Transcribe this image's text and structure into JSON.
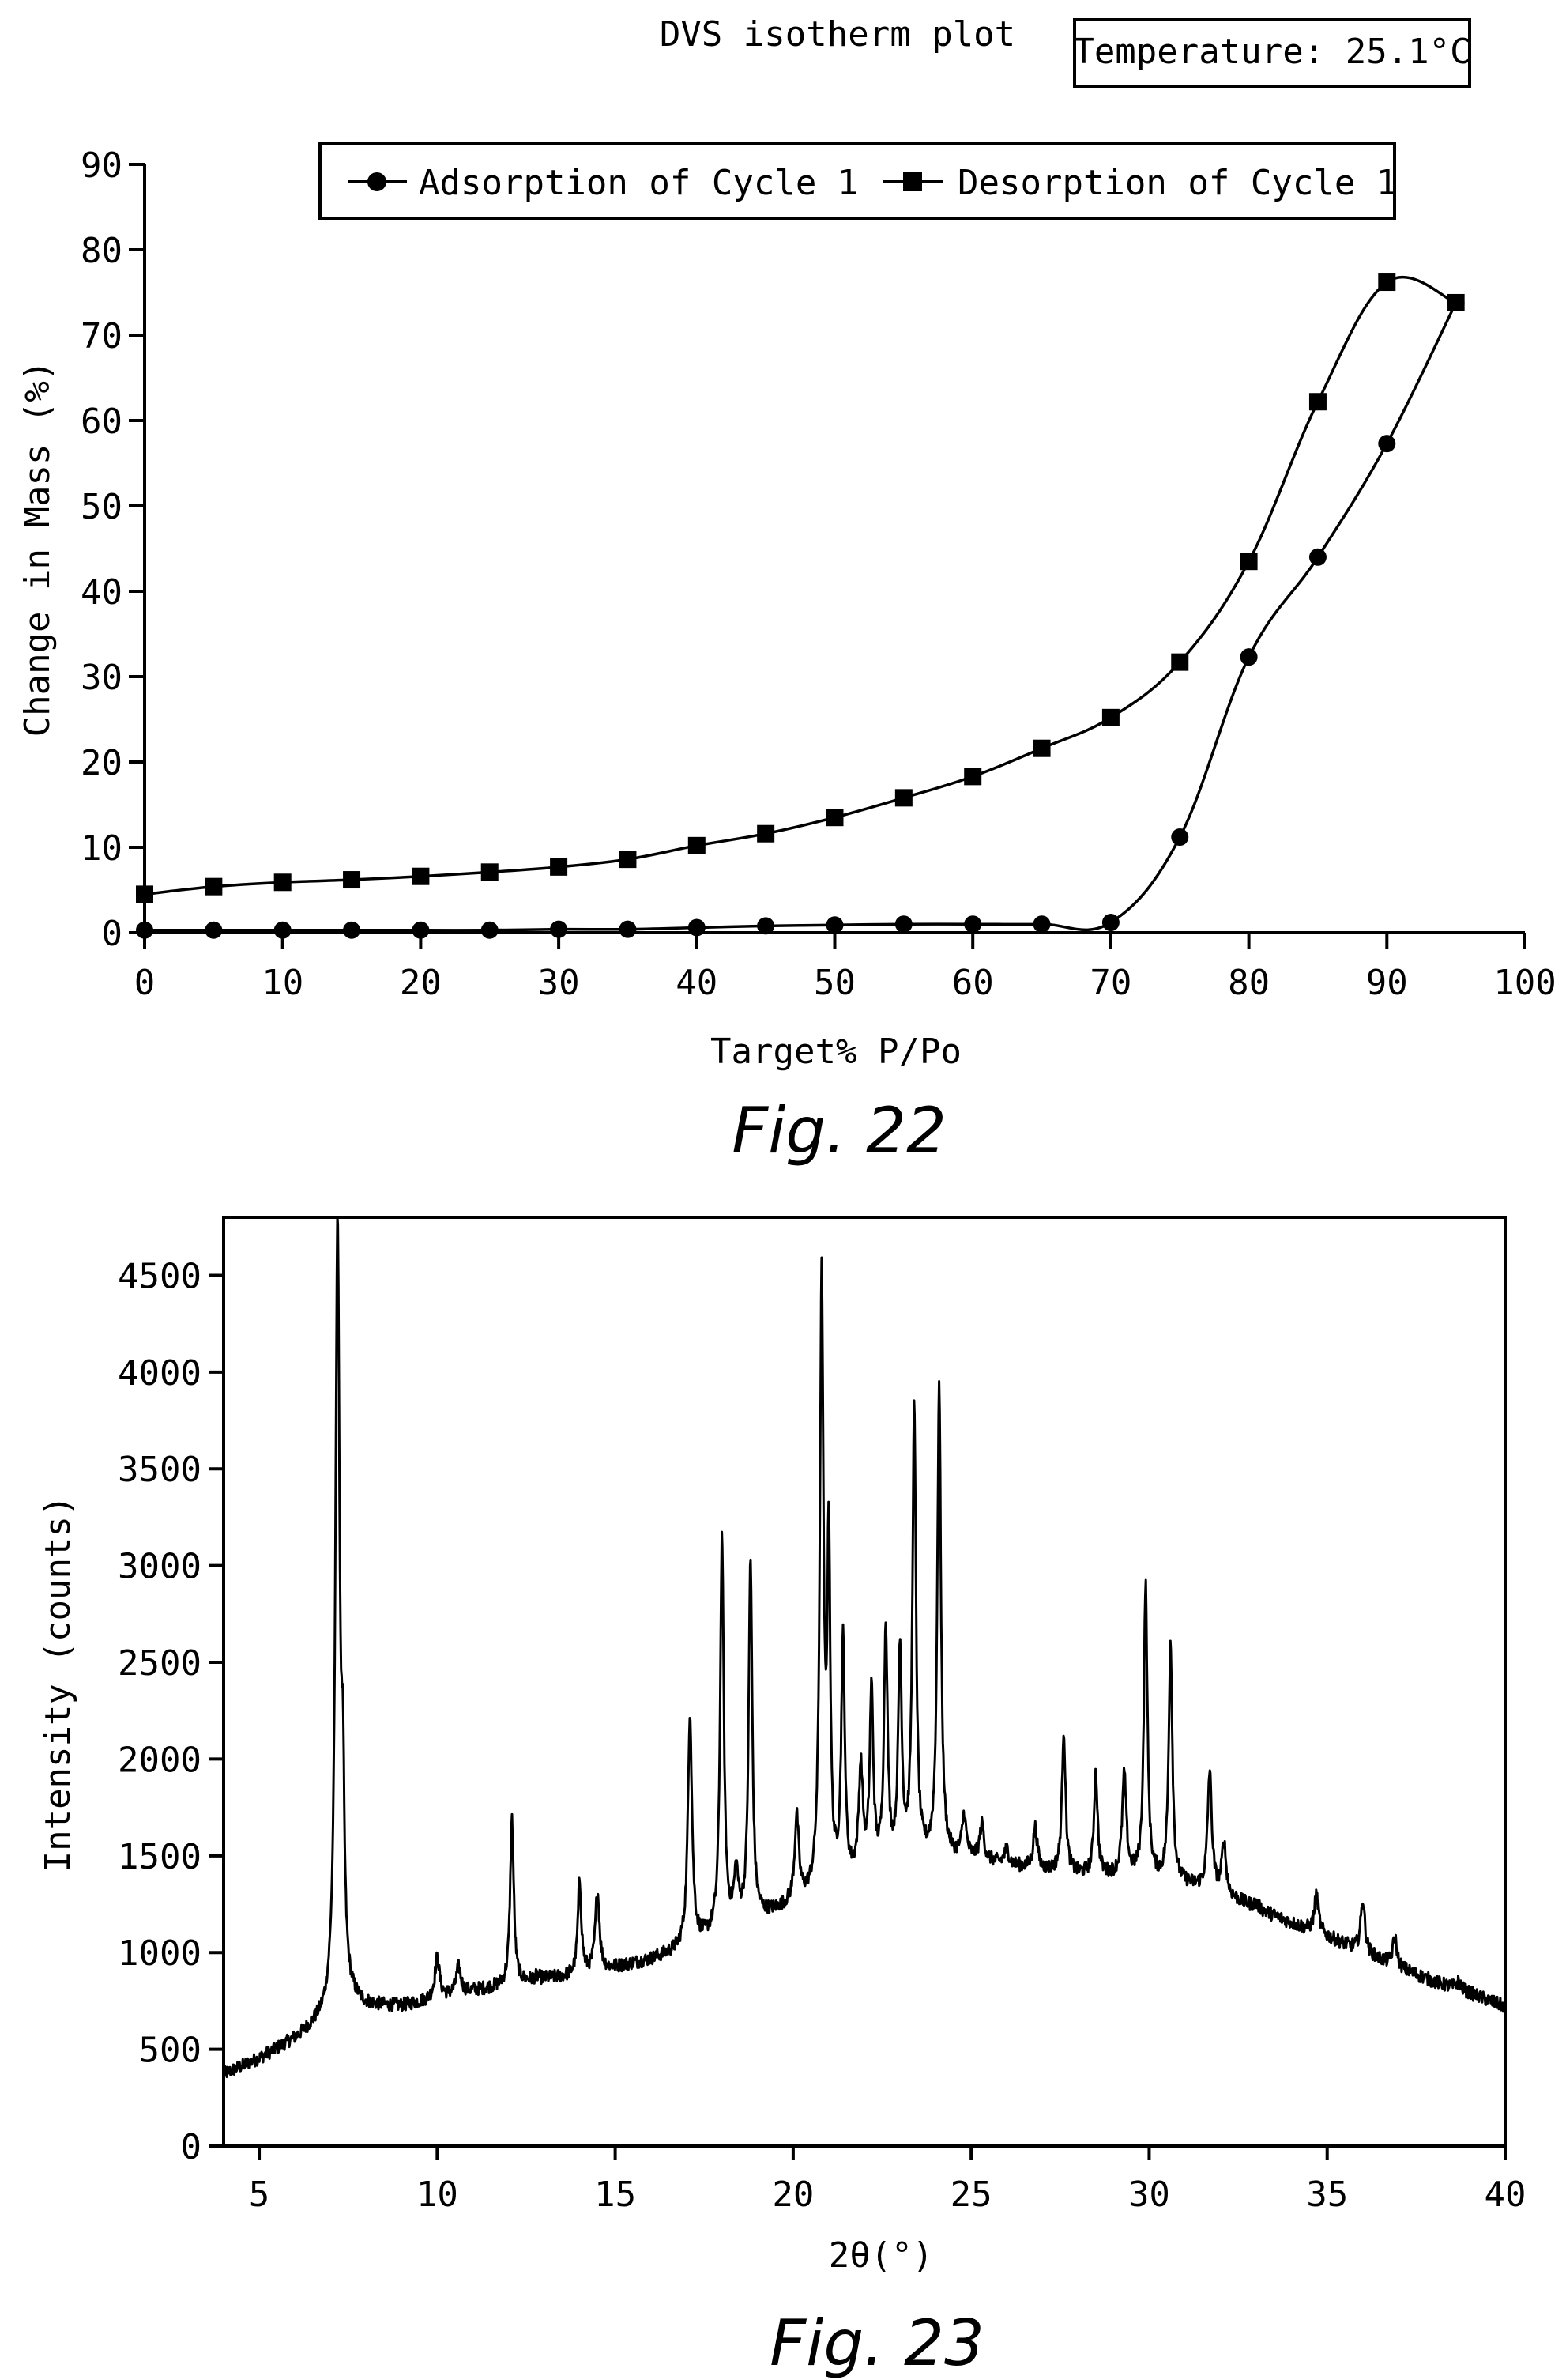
{
  "figures": [
    {
      "caption": "Fig. 22"
    },
    {
      "caption": "Fig. 23"
    }
  ],
  "chart_data": [
    {
      "type": "line",
      "title": "DVS isotherm plot",
      "annotation": "Temperature: 25.1°C",
      "xlabel": "Target% P/Po",
      "ylabel": "Change in Mass (%)",
      "xlim": [
        0,
        100
      ],
      "ylim": [
        0,
        90
      ],
      "xticks": [
        0,
        10,
        20,
        30,
        40,
        50,
        60,
        70,
        80,
        90,
        100
      ],
      "yticks": [
        0,
        10,
        20,
        30,
        40,
        50,
        60,
        70,
        80,
        90
      ],
      "legend_position": "top",
      "grid": false,
      "series": [
        {
          "name": "Adsorption of Cycle 1",
          "marker": "circle",
          "x": [
            0,
            5,
            10,
            15,
            20,
            25,
            30,
            35,
            40,
            45,
            50,
            55,
            60,
            65,
            70,
            75,
            80,
            85,
            90,
            95
          ],
          "y": [
            0.3,
            0.3,
            0.3,
            0.3,
            0.3,
            0.3,
            0.4,
            0.4,
            0.6,
            0.8,
            0.9,
            1.0,
            1.0,
            1.0,
            1.2,
            11.2,
            32.3,
            44.0,
            57.3,
            73.8
          ]
        },
        {
          "name": "Desorption of Cycle 1",
          "marker": "square",
          "x": [
            95,
            90,
            85,
            80,
            75,
            70,
            65,
            60,
            55,
            50,
            45,
            40,
            35,
            30,
            25,
            20,
            15,
            10,
            5,
            0
          ],
          "y": [
            73.8,
            76.2,
            62.2,
            43.5,
            31.7,
            25.2,
            21.6,
            18.3,
            15.8,
            13.5,
            11.6,
            10.2,
            8.6,
            7.7,
            7.1,
            6.6,
            6.2,
            5.9,
            5.4,
            4.5
          ]
        }
      ]
    },
    {
      "type": "line",
      "xlabel": "2θ(°)",
      "ylabel": "Intensity (counts)",
      "xlim": [
        4,
        40
      ],
      "ylim": [
        0,
        4800
      ],
      "xticks": [
        5,
        10,
        15,
        20,
        25,
        30,
        35,
        40
      ],
      "yticks": [
        0,
        500,
        1000,
        1500,
        2000,
        2500,
        3000,
        3500,
        4000,
        4500
      ],
      "grid": false,
      "baseline": {
        "x": [
          4,
          5,
          6,
          6.8,
          7.5,
          8,
          9,
          10,
          11,
          12,
          13,
          14,
          15,
          16,
          17,
          18,
          19,
          20,
          21,
          22,
          23,
          24,
          25,
          26,
          27,
          28,
          29,
          30,
          31,
          32,
          33,
          34,
          35,
          36,
          37,
          38,
          39,
          40
        ],
        "y": [
          370,
          450,
          550,
          650,
          740,
          720,
          720,
          760,
          800,
          830,
          860,
          880,
          920,
          960,
          1020,
          1100,
          1170,
          1240,
          1300,
          1380,
          1440,
          1480,
          1480,
          1450,
          1420,
          1400,
          1390,
          1380,
          1350,
          1300,
          1230,
          1150,
          1080,
          1000,
          920,
          850,
          790,
          720
        ]
      },
      "peaks": [
        {
          "x": 7.2,
          "y": 4750,
          "w": 0.07
        },
        {
          "x": 7.35,
          "y": 1600,
          "w": 0.05
        },
        {
          "x": 10.0,
          "y": 970,
          "w": 0.08
        },
        {
          "x": 10.6,
          "y": 920,
          "w": 0.08
        },
        {
          "x": 12.1,
          "y": 1690,
          "w": 0.06
        },
        {
          "x": 12.8,
          "y": 870,
          "w": 0.1
        },
        {
          "x": 14.0,
          "y": 1360,
          "w": 0.06
        },
        {
          "x": 14.5,
          "y": 1310,
          "w": 0.07
        },
        {
          "x": 17.1,
          "y": 2230,
          "w": 0.07
        },
        {
          "x": 18.0,
          "y": 3140,
          "w": 0.06
        },
        {
          "x": 18.4,
          "y": 1380,
          "w": 0.07
        },
        {
          "x": 18.8,
          "y": 3020,
          "w": 0.06
        },
        {
          "x": 20.1,
          "y": 1680,
          "w": 0.07
        },
        {
          "x": 20.8,
          "y": 4430,
          "w": 0.06
        },
        {
          "x": 21.0,
          "y": 3050,
          "w": 0.05
        },
        {
          "x": 21.4,
          "y": 2580,
          "w": 0.06
        },
        {
          "x": 21.9,
          "y": 1920,
          "w": 0.07
        },
        {
          "x": 22.2,
          "y": 2320,
          "w": 0.06
        },
        {
          "x": 22.6,
          "y": 2650,
          "w": 0.06
        },
        {
          "x": 23.0,
          "y": 2530,
          "w": 0.06
        },
        {
          "x": 23.4,
          "y": 3780,
          "w": 0.06
        },
        {
          "x": 24.1,
          "y": 3910,
          "w": 0.06
        },
        {
          "x": 24.8,
          "y": 1690,
          "w": 0.07
        },
        {
          "x": 25.3,
          "y": 1650,
          "w": 0.07
        },
        {
          "x": 26.0,
          "y": 1530,
          "w": 0.07
        },
        {
          "x": 26.8,
          "y": 1640,
          "w": 0.07
        },
        {
          "x": 27.6,
          "y": 2140,
          "w": 0.06
        },
        {
          "x": 28.5,
          "y": 1920,
          "w": 0.06
        },
        {
          "x": 29.3,
          "y": 1910,
          "w": 0.07
        },
        {
          "x": 29.9,
          "y": 2890,
          "w": 0.06
        },
        {
          "x": 30.6,
          "y": 2600,
          "w": 0.06
        },
        {
          "x": 31.7,
          "y": 1930,
          "w": 0.07
        },
        {
          "x": 32.1,
          "y": 1560,
          "w": 0.07
        },
        {
          "x": 33.0,
          "y": 1250,
          "w": 0.08
        },
        {
          "x": 34.7,
          "y": 1300,
          "w": 0.07
        },
        {
          "x": 36.0,
          "y": 1270,
          "w": 0.07
        },
        {
          "x": 36.9,
          "y": 1080,
          "w": 0.07
        },
        {
          "x": 38.7,
          "y": 850,
          "w": 0.08
        }
      ]
    }
  ]
}
